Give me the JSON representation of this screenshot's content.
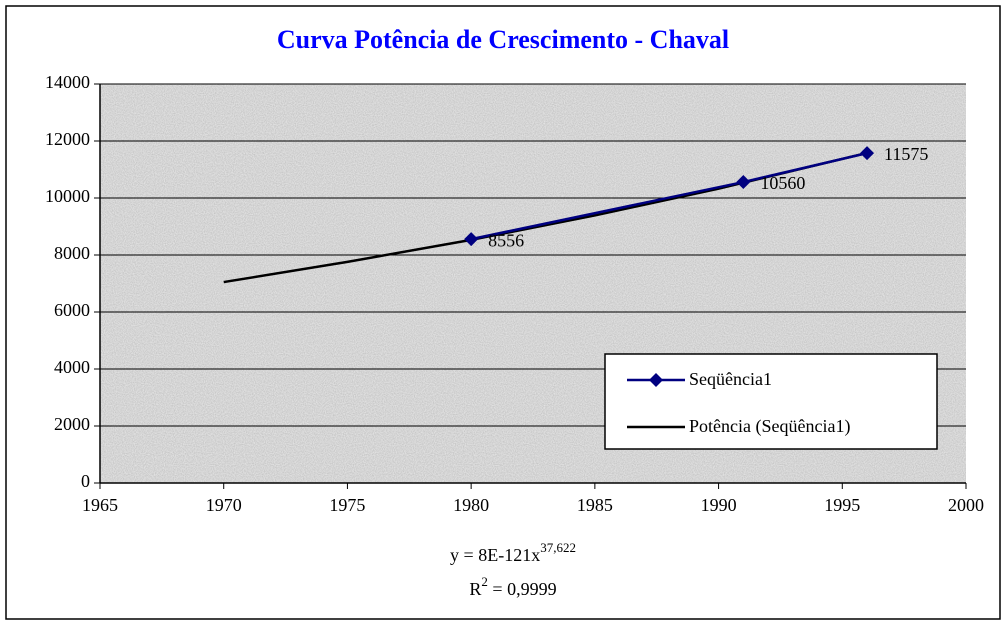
{
  "chart_data": {
    "type": "scatter",
    "title": "Curva Potência de Crescimento - Chaval",
    "series": [
      {
        "name": "Seqüência1",
        "color": "#000080",
        "marker": "diamond",
        "data_labels": true,
        "x": [
          1980,
          1991,
          1996
        ],
        "values": [
          8556,
          10560,
          11575
        ]
      },
      {
        "name": "Potência (Seqüência1)",
        "color": "#000000",
        "x": [
          1970,
          1975,
          1980,
          1985,
          1990,
          1996
        ],
        "values": [
          7050,
          7760,
          8530,
          9390,
          10330,
          11580
        ]
      }
    ],
    "equation": [
      "y = 8E-121x",
      "37,622"
    ],
    "r_squared": [
      "R",
      "2",
      " = 0,9999"
    ],
    "xlim": [
      1965,
      2000
    ],
    "xticks": [
      1965,
      1970,
      1975,
      1980,
      1985,
      1990,
      1995,
      2000
    ],
    "ylim": [
      0,
      14000
    ],
    "yticks": [
      0,
      2000,
      4000,
      6000,
      8000,
      10000,
      12000,
      14000
    ],
    "grid": true,
    "legend_position": "lower right"
  }
}
